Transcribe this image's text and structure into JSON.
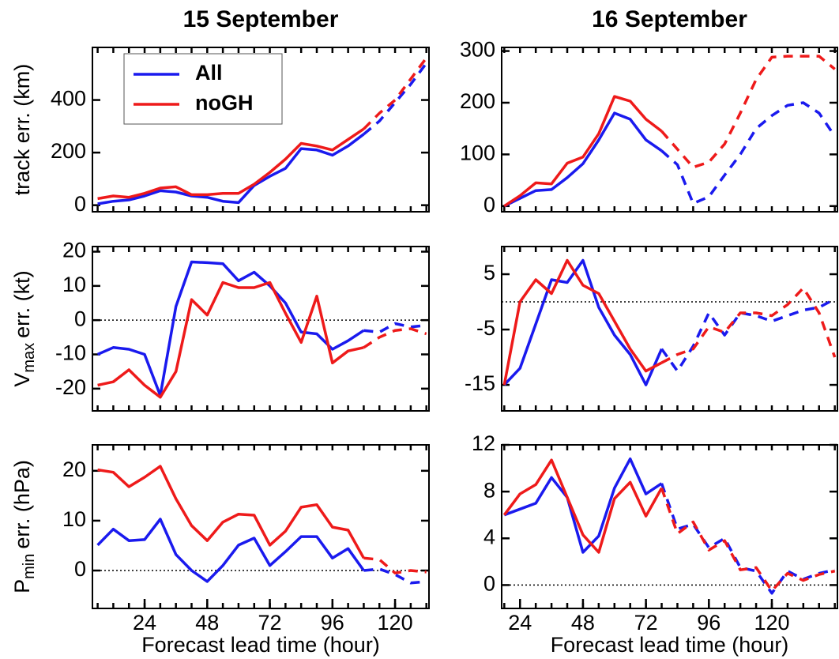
{
  "chart_data": [
    {
      "type": "line",
      "title": "15 September",
      "ylabel": "track err. (km)",
      "legend": "upper left",
      "x": [
        6,
        12,
        18,
        24,
        30,
        36,
        42,
        48,
        54,
        60,
        66,
        72,
        78,
        84,
        90,
        96,
        102,
        108,
        114,
        120,
        126,
        132
      ],
      "xlim": [
        4,
        133
      ],
      "ylim": [
        -25,
        600
      ],
      "yticks": [
        0,
        200,
        400
      ],
      "dash_from": 108,
      "series": [
        {
          "name": "All",
          "color": "#1a1aee",
          "values": [
            5,
            15,
            20,
            35,
            55,
            50,
            35,
            30,
            15,
            10,
            75,
            110,
            140,
            215,
            210,
            190,
            225,
            270,
            320,
            390,
            460,
            540
          ]
        },
        {
          "name": "noGH",
          "color": "#ee1a1a",
          "values": [
            25,
            35,
            30,
            45,
            65,
            70,
            40,
            40,
            45,
            45,
            80,
            125,
            175,
            235,
            225,
            210,
            250,
            290,
            350,
            400,
            480,
            560
          ]
        }
      ]
    },
    {
      "type": "line",
      "title": "16 September",
      "x": [
        18,
        24,
        30,
        36,
        42,
        48,
        54,
        60,
        66,
        72,
        78,
        84,
        90,
        96,
        102,
        108,
        114,
        120,
        126,
        132,
        138,
        144
      ],
      "xlim": [
        17,
        145
      ],
      "ylim": [
        -11,
        307
      ],
      "yticks": [
        0,
        100,
        200,
        300
      ],
      "dash_from": 78,
      "series": [
        {
          "name": "All",
          "color": "#1a1aee",
          "values": [
            0,
            15,
            30,
            32,
            55,
            82,
            128,
            180,
            168,
            128,
            107,
            80,
            5,
            18,
            60,
            100,
            150,
            175,
            195,
            200,
            180,
            135
          ]
        },
        {
          "name": "noGH",
          "color": "#ee1a1a",
          "values": [
            0,
            20,
            45,
            43,
            83,
            95,
            140,
            212,
            203,
            168,
            145,
            110,
            75,
            85,
            120,
            180,
            245,
            288,
            290,
            290,
            290,
            265
          ]
        }
      ]
    },
    {
      "type": "line",
      "ylabel": {
        "base": "V",
        "sub": "max",
        "text": "err. (kt)"
      },
      "zero_line": true,
      "x": [
        6,
        12,
        18,
        24,
        30,
        36,
        42,
        48,
        54,
        60,
        66,
        72,
        78,
        84,
        90,
        96,
        102,
        108,
        114,
        120,
        126,
        132
      ],
      "xlim": [
        4,
        133
      ],
      "ylim": [
        -26.5,
        21.5
      ],
      "yticks": [
        -20,
        -10,
        0,
        10,
        20
      ],
      "dash_from": 108,
      "series": [
        {
          "name": "All",
          "color": "#1a1aee",
          "values": [
            -10,
            -8,
            -8.5,
            -10,
            -22,
            4,
            17,
            16.8,
            16.5,
            11.5,
            14,
            10,
            5,
            -3.5,
            -4,
            -8.5,
            -6,
            -3,
            -3.5,
            -1,
            -2,
            -1.5
          ]
        },
        {
          "name": "noGH",
          "color": "#ee1a1a",
          "values": [
            -19,
            -18,
            -14.5,
            -19,
            -22.5,
            -15,
            6,
            1.5,
            11,
            9.5,
            9.5,
            11,
            2,
            -6.5,
            7,
            -12.5,
            -9,
            -8,
            -5,
            -3,
            -2.5,
            -4
          ]
        }
      ]
    },
    {
      "type": "line",
      "zero_line": true,
      "x": [
        18,
        24,
        30,
        36,
        42,
        48,
        54,
        60,
        66,
        72,
        78,
        84,
        90,
        96,
        102,
        108,
        114,
        120,
        126,
        132,
        138,
        144
      ],
      "xlim": [
        17,
        145
      ],
      "ylim": [
        -19.7,
        10
      ],
      "yticks": [
        -15,
        -5,
        5
      ],
      "dash_from": 78,
      "series": [
        {
          "name": "All",
          "color": "#1a1aee",
          "values": [
            -15,
            -12,
            -4,
            4,
            3.5,
            7.5,
            -1,
            -6,
            -9.5,
            -15,
            -8.5,
            -12.5,
            -8,
            -2,
            -6,
            -2,
            -2.5,
            -3.5,
            -2.5,
            -1.5,
            -1,
            0.5
          ]
        },
        {
          "name": "noGH",
          "color": "#ee1a1a",
          "values": [
            -15,
            0,
            4,
            1.5,
            7.5,
            3,
            1.5,
            -3.5,
            -8.5,
            -12.5,
            -11,
            -9.5,
            -8.5,
            -4.5,
            -5.5,
            -2,
            -2,
            -2.5,
            -0.5,
            2.5,
            -2,
            -10
          ]
        }
      ]
    },
    {
      "type": "line",
      "ylabel": {
        "base": "P",
        "sub": "min",
        "text": "err. (hPa)"
      },
      "zero_line": true,
      "xlabel": "Forecast lead time (hour)",
      "x": [
        6,
        12,
        18,
        24,
        30,
        36,
        42,
        48,
        54,
        60,
        66,
        72,
        78,
        84,
        90,
        96,
        102,
        108,
        114,
        120,
        126,
        132
      ],
      "xlim": [
        4,
        133
      ],
      "ylim": [
        -7.6,
        25.2
      ],
      "yticks": [
        0,
        10,
        20
      ],
      "xticks": [
        24,
        48,
        72,
        96,
        120
      ],
      "dash_from": 108,
      "series": [
        {
          "name": "All",
          "color": "#1a1aee",
          "values": [
            5.1,
            8.3,
            6,
            6.2,
            10.3,
            3.2,
            0,
            -2.2,
            1,
            5.1,
            6.5,
            1,
            3.8,
            6.8,
            6.8,
            2.5,
            4.4,
            0,
            0.3,
            -0.8,
            -2.5,
            -2.2
          ]
        },
        {
          "name": "noGH",
          "color": "#ee1a1a",
          "values": [
            20.2,
            19.7,
            16.8,
            18.7,
            20.9,
            14.4,
            9,
            6,
            9.7,
            11.3,
            11.1,
            5.1,
            7.9,
            12.7,
            13.2,
            8.7,
            8.1,
            2.5,
            2.2,
            -0.5,
            0,
            -0.3
          ]
        }
      ]
    },
    {
      "type": "line",
      "zero_line": true,
      "xlabel": "Forecast lead time (hour)",
      "x": [
        18,
        24,
        30,
        36,
        42,
        48,
        54,
        60,
        66,
        72,
        78,
        84,
        90,
        96,
        102,
        108,
        114,
        120,
        126,
        132,
        138,
        144
      ],
      "xlim": [
        17,
        145
      ],
      "ylim": [
        -2,
        12
      ],
      "yticks": [
        0,
        4,
        8,
        12
      ],
      "xticks": [
        24,
        48,
        72,
        96,
        120
      ],
      "dash_from": 78,
      "series": [
        {
          "name": "All",
          "color": "#1a1aee",
          "values": [
            6,
            6.5,
            7,
            9.2,
            7.5,
            2.8,
            4.2,
            8.3,
            10.8,
            7.8,
            8.7,
            4.8,
            5.2,
            3.2,
            4,
            1.5,
            1.2,
            -0.7,
            1.2,
            0.5,
            1,
            1.3
          ]
        },
        {
          "name": "noGH",
          "color": "#ee1a1a",
          "values": [
            6,
            7.8,
            8.6,
            10.7,
            7.5,
            4.3,
            2.8,
            7.4,
            8.8,
            5.9,
            8.3,
            4.4,
            5.4,
            3,
            3.8,
            1.3,
            1.5,
            -0.5,
            1,
            0.4,
            0.9,
            1.2
          ]
        }
      ]
    }
  ]
}
